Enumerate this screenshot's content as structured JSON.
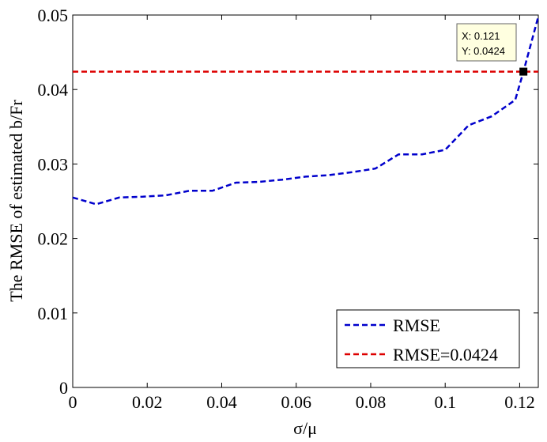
{
  "chart_data": {
    "type": "line",
    "xlabel": "σ/μ",
    "ylabel": "The RMSE of estimated b/Fr",
    "xlim": [
      0,
      0.125
    ],
    "ylim": [
      0,
      0.05
    ],
    "xticks": [
      0,
      0.02,
      0.04,
      0.06,
      0.08,
      0.1,
      0.12
    ],
    "xtick_labels": [
      "0",
      "0.02",
      "0.04",
      "0.06",
      "0.08",
      "0.1",
      "0.12"
    ],
    "yticks": [
      0,
      0.01,
      0.02,
      0.03,
      0.04,
      0.05
    ],
    "ytick_labels": [
      "0",
      "0.01",
      "0.02",
      "0.03",
      "0.04",
      "0.05"
    ],
    "grid": false,
    "legend_position": "bottom-right",
    "series": [
      {
        "name": "RMSE",
        "color": "#0000cc",
        "style": "dashed",
        "x": [
          0,
          0.0063,
          0.0125,
          0.0188,
          0.025,
          0.0313,
          0.0375,
          0.0438,
          0.05,
          0.0563,
          0.0625,
          0.0688,
          0.075,
          0.0813,
          0.0875,
          0.0938,
          0.1,
          0.1063,
          0.1125,
          0.1188,
          0.121,
          0.125
        ],
        "y": [
          0.0255,
          0.0246,
          0.0255,
          0.0256,
          0.0258,
          0.0264,
          0.0264,
          0.0275,
          0.0276,
          0.0279,
          0.0283,
          0.0285,
          0.0289,
          0.0294,
          0.0313,
          0.0313,
          0.0319,
          0.0352,
          0.0364,
          0.0386,
          0.0424,
          0.0498
        ]
      },
      {
        "name": "RMSE=0.0424",
        "color": "#dd0000",
        "style": "dashed",
        "x": [
          0,
          0.125
        ],
        "y": [
          0.0424,
          0.0424
        ]
      }
    ],
    "datatip": {
      "x": 0.121,
      "y": 0.0424,
      "x_text": "X: 0.121",
      "y_text": "Y: 0.0424"
    }
  }
}
